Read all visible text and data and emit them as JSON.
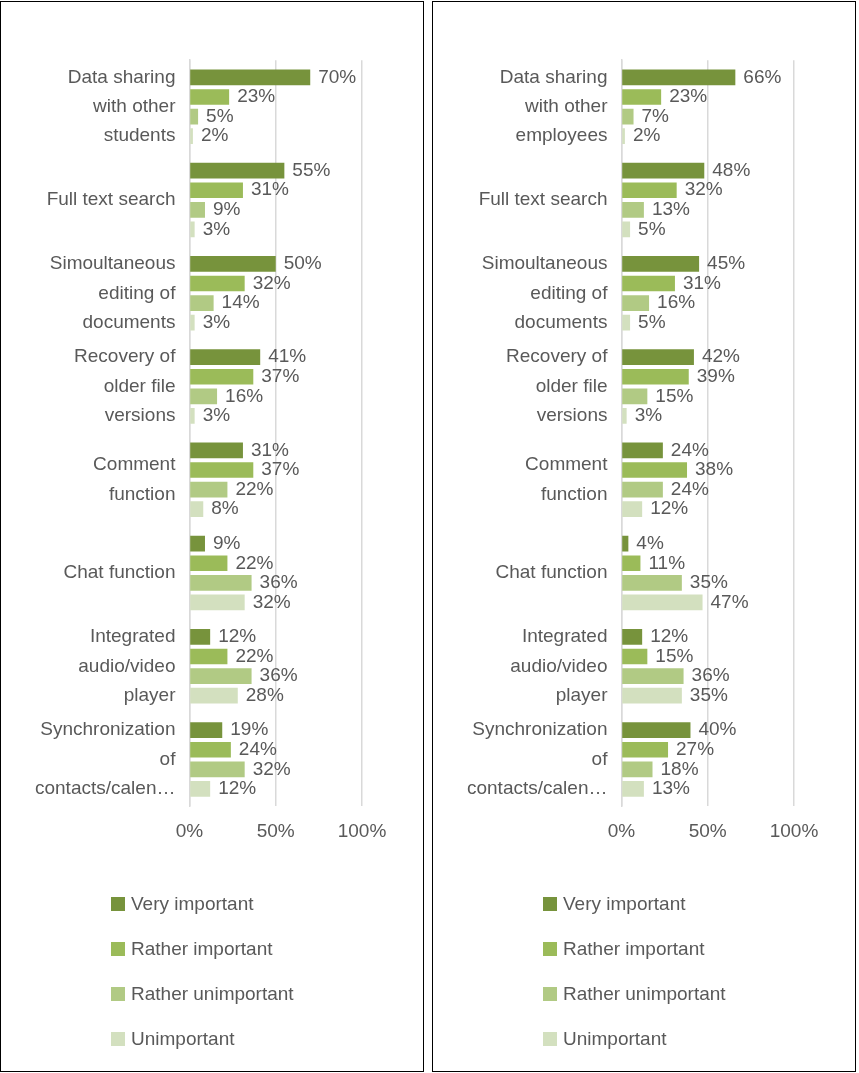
{
  "chart_data": [
    {
      "type": "bar",
      "orientation": "horizontal",
      "categories": [
        "Data sharing with other students",
        "Full text search",
        "Simoultaneous editing of documents",
        "Recovery of older file versions",
        "Comment function",
        "Chat function",
        "Integrated audio/video player",
        "Synchronization of contacts/calen…"
      ],
      "series": [
        {
          "name": "Very important",
          "color": "#77933c",
          "values": [
            70,
            55,
            50,
            41,
            31,
            9,
            12,
            19
          ],
          "value_labels": [
            "70%",
            "55%",
            "50%",
            "41%",
            "31%",
            "9%",
            "12%",
            "19%"
          ]
        },
        {
          "name": "Rather important",
          "color": "#9bbb59",
          "values": [
            23,
            31,
            32,
            37,
            37,
            22,
            22,
            24
          ],
          "value_labels": [
            "23%",
            "31%",
            "32%",
            "37%",
            "37%",
            "22%",
            "22%",
            "24%"
          ]
        },
        {
          "name": "Rather unimportant",
          "color": "#b1ca84",
          "values": [
            5,
            9,
            14,
            16,
            22,
            36,
            36,
            32
          ],
          "value_labels": [
            "5%",
            "9%",
            "14%",
            "16%",
            "22%",
            "36%",
            "36%",
            "32%"
          ]
        },
        {
          "name": "Unimportant",
          "color": "#d3e0bf",
          "values": [
            2,
            3,
            3,
            3,
            8,
            32,
            28,
            12
          ],
          "value_labels": [
            "2%",
            "3%",
            "3%",
            "3%",
            "8%",
            "32%",
            "28%",
            "12%"
          ]
        }
      ],
      "xlim": [
        0,
        100
      ],
      "xticks": [
        {
          "value": 0,
          "label": "0%"
        },
        {
          "value": 50,
          "label": "50%"
        },
        {
          "value": 100,
          "label": "100%"
        }
      ],
      "grid": "x",
      "legend": "bottom"
    },
    {
      "type": "bar",
      "orientation": "horizontal",
      "categories": [
        "Data sharing with other employees",
        "Full text search",
        "Simoultaneous editing of documents",
        "Recovery of older file versions",
        "Comment function",
        "Chat function",
        "Integrated audio/video player",
        "Synchronization of contacts/calen…"
      ],
      "series": [
        {
          "name": "Very important",
          "color": "#77933c",
          "values": [
            66,
            48,
            45,
            42,
            24,
            4,
            12,
            40
          ],
          "value_labels": [
            "66%",
            "48%",
            "45%",
            "42%",
            "24%",
            "4%",
            "12%",
            "40%"
          ]
        },
        {
          "name": "Rather important",
          "color": "#9bbb59",
          "values": [
            23,
            32,
            31,
            39,
            38,
            11,
            15,
            27
          ],
          "value_labels": [
            "23%",
            "32%",
            "31%",
            "39%",
            "38%",
            "11%",
            "15%",
            "27%"
          ]
        },
        {
          "name": "Rather unimportant",
          "color": "#b1ca84",
          "values": [
            7,
            13,
            16,
            15,
            24,
            35,
            36,
            18
          ],
          "value_labels": [
            "7%",
            "13%",
            "16%",
            "15%",
            "24%",
            "35%",
            "36%",
            "18%"
          ]
        },
        {
          "name": "Unimportant",
          "color": "#d3e0bf",
          "values": [
            2,
            5,
            5,
            3,
            12,
            47,
            35,
            13
          ],
          "value_labels": [
            "2%",
            "5%",
            "5%",
            "3%",
            "12%",
            "47%",
            "35%",
            "13%"
          ]
        }
      ],
      "xlim": [
        0,
        100
      ],
      "xticks": [
        {
          "value": 0,
          "label": "0%"
        },
        {
          "value": 50,
          "label": "50%"
        },
        {
          "value": 100,
          "label": "100%"
        }
      ],
      "grid": "x",
      "legend": "bottom"
    }
  ]
}
